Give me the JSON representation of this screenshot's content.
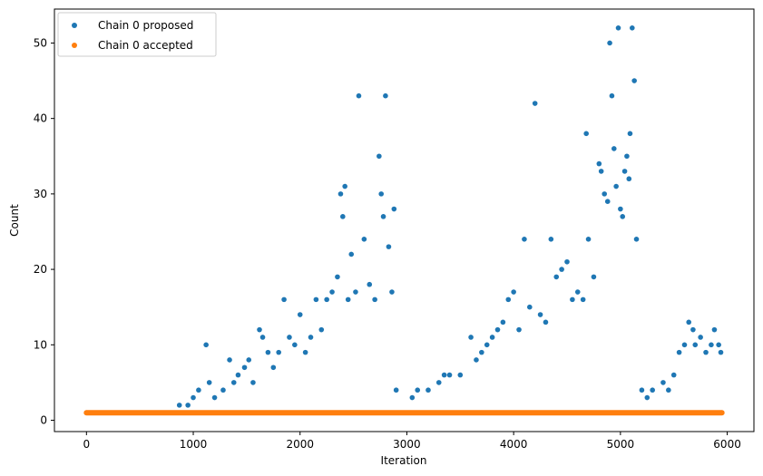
{
  "chart_data": {
    "type": "scatter",
    "title": "",
    "xlabel": "Iteration",
    "ylabel": "Count",
    "xlim": [
      -300,
      6250
    ],
    "ylim": [
      -1.5,
      54.5
    ],
    "xticks": [
      0,
      1000,
      2000,
      3000,
      4000,
      5000,
      6000
    ],
    "yticks": [
      0,
      10,
      20,
      30,
      40,
      50
    ],
    "grid": false,
    "legend_position": "top-left",
    "series": [
      {
        "name": "Chain 0 proposed",
        "color": "#1f77b4",
        "points": [
          [
            870,
            2
          ],
          [
            950,
            2
          ],
          [
            1000,
            3
          ],
          [
            1050,
            4
          ],
          [
            1120,
            10
          ],
          [
            1150,
            5
          ],
          [
            1200,
            3
          ],
          [
            1280,
            4
          ],
          [
            1340,
            8
          ],
          [
            1380,
            5
          ],
          [
            1420,
            6
          ],
          [
            1480,
            7
          ],
          [
            1520,
            8
          ],
          [
            1560,
            5
          ],
          [
            1620,
            12
          ],
          [
            1650,
            11
          ],
          [
            1700,
            9
          ],
          [
            1750,
            7
          ],
          [
            1800,
            9
          ],
          [
            1850,
            16
          ],
          [
            1900,
            11
          ],
          [
            1950,
            10
          ],
          [
            2000,
            14
          ],
          [
            2050,
            9
          ],
          [
            2100,
            11
          ],
          [
            2150,
            16
          ],
          [
            2200,
            12
          ],
          [
            2250,
            16
          ],
          [
            2300,
            17
          ],
          [
            2350,
            19
          ],
          [
            2380,
            30
          ],
          [
            2400,
            27
          ],
          [
            2420,
            31
          ],
          [
            2450,
            16
          ],
          [
            2480,
            22
          ],
          [
            2520,
            17
          ],
          [
            2550,
            43
          ],
          [
            2600,
            24
          ],
          [
            2650,
            18
          ],
          [
            2700,
            16
          ],
          [
            2740,
            35
          ],
          [
            2760,
            30
          ],
          [
            2780,
            27
          ],
          [
            2800,
            43
          ],
          [
            2830,
            23
          ],
          [
            2860,
            17
          ],
          [
            2880,
            28
          ],
          [
            2900,
            4
          ],
          [
            3050,
            3
          ],
          [
            3100,
            4
          ],
          [
            3200,
            4
          ],
          [
            3300,
            5
          ],
          [
            3350,
            6
          ],
          [
            3400,
            6
          ],
          [
            3500,
            6
          ],
          [
            3600,
            11
          ],
          [
            3650,
            8
          ],
          [
            3700,
            9
          ],
          [
            3750,
            10
          ],
          [
            3800,
            11
          ],
          [
            3850,
            12
          ],
          [
            3900,
            13
          ],
          [
            3950,
            16
          ],
          [
            4000,
            17
          ],
          [
            4050,
            12
          ],
          [
            4100,
            24
          ],
          [
            4150,
            15
          ],
          [
            4200,
            42
          ],
          [
            4250,
            14
          ],
          [
            4300,
            13
          ],
          [
            4350,
            24
          ],
          [
            4400,
            19
          ],
          [
            4450,
            20
          ],
          [
            4500,
            21
          ],
          [
            4550,
            16
          ],
          [
            4600,
            17
          ],
          [
            4650,
            16
          ],
          [
            4680,
            38
          ],
          [
            4700,
            24
          ],
          [
            4750,
            19
          ],
          [
            4800,
            34
          ],
          [
            4820,
            33
          ],
          [
            4850,
            30
          ],
          [
            4880,
            29
          ],
          [
            4900,
            50
          ],
          [
            4920,
            43
          ],
          [
            4940,
            36
          ],
          [
            4960,
            31
          ],
          [
            4980,
            52
          ],
          [
            5000,
            28
          ],
          [
            5020,
            27
          ],
          [
            5040,
            33
          ],
          [
            5060,
            35
          ],
          [
            5080,
            32
          ],
          [
            5090,
            38
          ],
          [
            5110,
            52
          ],
          [
            5130,
            45
          ],
          [
            5150,
            24
          ],
          [
            5200,
            4
          ],
          [
            5250,
            3
          ],
          [
            5300,
            4
          ],
          [
            5400,
            5
          ],
          [
            5450,
            4
          ],
          [
            5500,
            6
          ],
          [
            5550,
            9
          ],
          [
            5600,
            10
          ],
          [
            5640,
            13
          ],
          [
            5680,
            12
          ],
          [
            5700,
            10
          ],
          [
            5750,
            11
          ],
          [
            5800,
            9
          ],
          [
            5850,
            10
          ],
          [
            5880,
            12
          ],
          [
            5920,
            10
          ],
          [
            5940,
            9
          ]
        ]
      },
      {
        "name": "Chain 0 accepted",
        "color": "#ff7f0e",
        "points": [
          [
            0,
            1
          ],
          [
            5950,
            1
          ]
        ]
      }
    ]
  }
}
